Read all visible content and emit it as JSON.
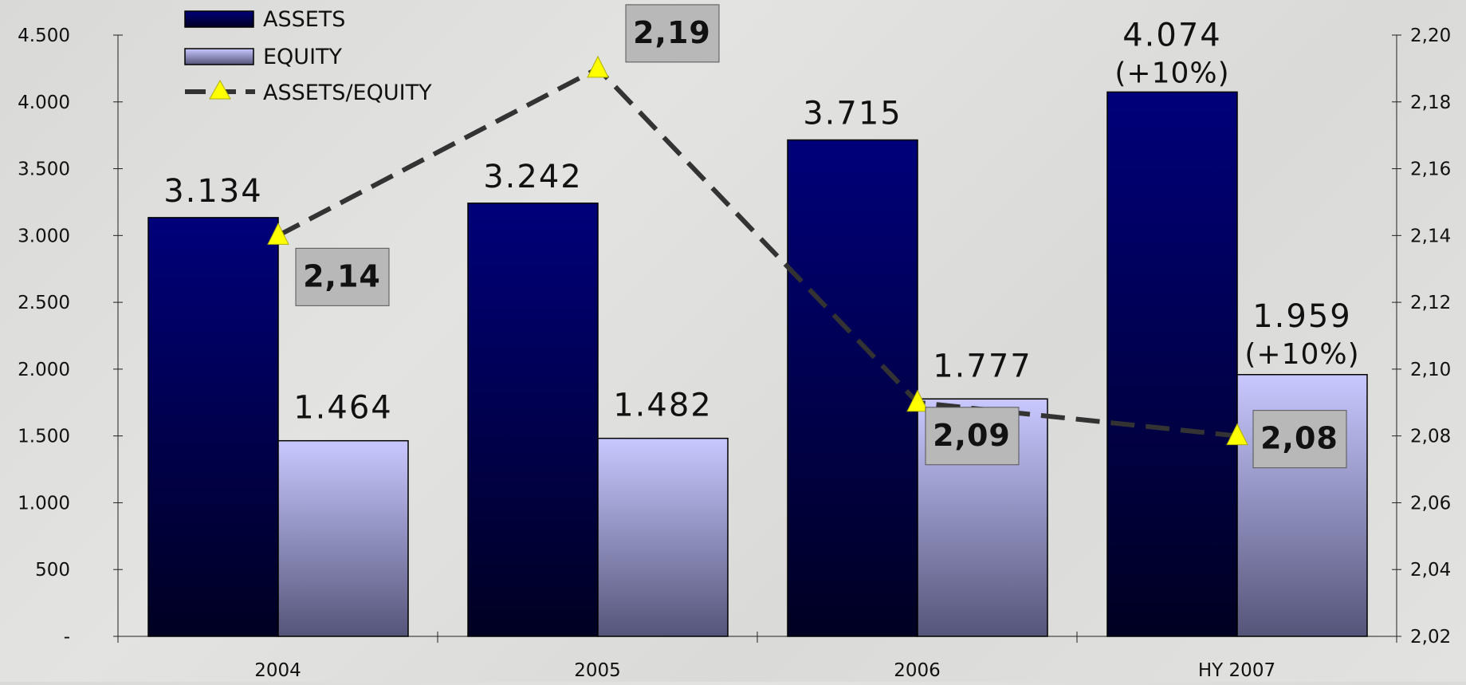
{
  "chart_data": {
    "type": "bar",
    "categories": [
      "2004",
      "2005",
      "2006",
      "HY 2007"
    ],
    "series": [
      {
        "name": "ASSETS",
        "kind": "bar",
        "axis": "left",
        "values": [
          3134,
          3242,
          3715,
          4074
        ],
        "labels": [
          "3.134",
          "3.242",
          "3.715",
          "4.074"
        ],
        "sublabels": [
          "",
          "",
          "",
          "(+10%)"
        ]
      },
      {
        "name": "EQUITY",
        "kind": "bar",
        "axis": "right",
        "values": [
          1464,
          1482,
          1777,
          1959
        ],
        "labels": [
          "1.464",
          "1.482",
          "1.777",
          "1.959"
        ],
        "sublabels": [
          "",
          "",
          "",
          "(+10%)"
        ]
      },
      {
        "name": "ASSETS/EQUITY",
        "kind": "line",
        "axis": "secondary",
        "values": [
          2.14,
          2.19,
          2.09,
          2.08
        ],
        "labels": [
          "2,14",
          "2,19",
          "2,09",
          "2,08"
        ]
      }
    ],
    "y_left": {
      "min": 0,
      "max": 4500,
      "ticks": [
        0,
        500,
        1000,
        1500,
        2000,
        2500,
        3000,
        3500,
        4000,
        4500
      ],
      "tick_labels": [
        "-",
        "500",
        "1.000",
        "1.500",
        "2.000",
        "2.500",
        "3.000",
        "3.500",
        "4.000",
        "4.500"
      ]
    },
    "y_right": {
      "min": 2.02,
      "max": 2.2,
      "ticks": [
        2.02,
        2.04,
        2.06,
        2.08,
        2.1,
        2.12,
        2.14,
        2.16,
        2.18,
        2.2
      ],
      "tick_labels": [
        "2,02",
        "2,04",
        "2,06",
        "2,08",
        "2,10",
        "2,12",
        "2,14",
        "2,16",
        "2,18",
        "2,20"
      ]
    },
    "legend_position": "top-left",
    "grid": false,
    "colors": {
      "assets_top": "#00007a",
      "assets_bottom": "#000022",
      "equity_top": "#c8c8ff",
      "equity_bottom": "#55557a",
      "line": "#333333",
      "marker": "#ffff00",
      "label_box": "#b8b8b8"
    }
  }
}
